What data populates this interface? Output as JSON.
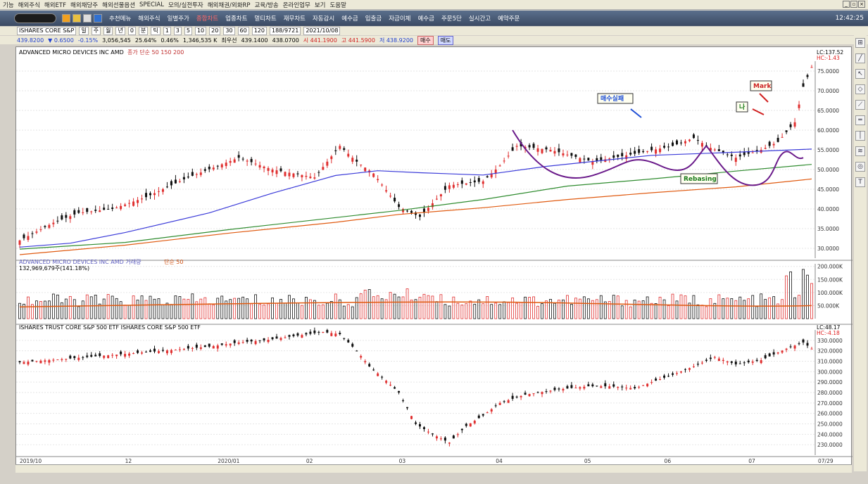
{
  "menu": [
    "기능",
    "해외주식",
    "해외ETF",
    "해외채당주",
    "해외선물옵션",
    "SPECIAL",
    "모의/실전투자",
    "해외채권/외화RP",
    "교육/방송",
    "온라인업무",
    "보기",
    "도움말"
  ],
  "toolbar": {
    "items": [
      "추천메뉴",
      "해외주식",
      "일별주가",
      "종합차트",
      "업종차트",
      "멀티차트",
      "재무차트",
      "자동감시",
      "예수금",
      "입출금",
      "자금이체",
      "예수금",
      "주문5단",
      "실시간고",
      "예약주문"
    ],
    "active_index": 3,
    "clock": "12:42:25"
  },
  "controls": {
    "ticker": "ISHARES CORE S&P",
    "periods": [
      "일",
      "주",
      "월",
      "년",
      "0",
      "분",
      "틱",
      "1",
      "3",
      "5",
      "10",
      "20",
      "30",
      "60",
      "120"
    ],
    "count": "188/9721",
    "date": "2021/10/08"
  },
  "quote": {
    "price": "439.8200",
    "change": "▼ 0.6500",
    "pct": "-0.15%",
    "volume": "3,056,545",
    "v_pct": "25.64%",
    "rate": "0.46%",
    "amount": "1,346,535 K",
    "best_label": "최우선",
    "bid1": "439.1400",
    "bid2": "438.0700",
    "open": "시 441.1900",
    "high": "고 441.5900",
    "low": "저 438.9200",
    "buy": "매수",
    "sell": "매도"
  },
  "chart_data": [
    {
      "type": "candlestick",
      "title": "ADVANCED MICRO DEVICES INC  AMD",
      "indicator_label": "종가 단순 50 150 200",
      "x_ticks": [
        "2019/10",
        "12",
        "2020/01",
        "02",
        "03",
        "04",
        "05",
        "06",
        "07",
        "07/29"
      ],
      "ylim": [
        27.5,
        77.5
      ],
      "y_ticks": [
        "75.0000",
        "70.0000",
        "65.0000",
        "60.0000",
        "55.0000",
        "50.0000",
        "45.0000",
        "40.0000",
        "35.0000",
        "30.0000"
      ],
      "lc_label": "LC:137.52",
      "hc_label": "HC:-1.43",
      "series": [
        {
          "name": "50",
          "color": "#3b3bd9",
          "values": [
            [
              0,
              30.3
            ],
            [
              12,
              31.3
            ],
            [
              25,
              34
            ],
            [
              45,
              39
            ],
            [
              60,
              44
            ],
            [
              75,
              48.5
            ],
            [
              85,
              49.7
            ],
            [
              95,
              49.2
            ],
            [
              110,
              48.6
            ],
            [
              125,
              50.8
            ],
            [
              150,
              53.6
            ],
            [
              170,
              54.4
            ],
            [
              188,
              55.2
            ]
          ]
        },
        {
          "name": "150",
          "color": "#2e8b2e",
          "values": [
            [
              0,
              29.8
            ],
            [
              25,
              31.5
            ],
            [
              50,
              34.8
            ],
            [
              75,
              37.8
            ],
            [
              90,
              39.6
            ],
            [
              110,
              42.4
            ],
            [
              130,
              45.8
            ],
            [
              150,
              47.6
            ],
            [
              170,
              49.6
            ],
            [
              188,
              51.3
            ]
          ]
        },
        {
          "name": "200",
          "color": "#e05a10",
          "values": [
            [
              0,
              28.4
            ],
            [
              25,
              30.8
            ],
            [
              50,
              33.9
            ],
            [
              75,
              36.6
            ],
            [
              90,
              38.6
            ],
            [
              110,
              40.3
            ],
            [
              130,
              42.4
            ],
            [
              150,
              44.1
            ],
            [
              170,
              45.6
            ],
            [
              188,
              47.6
            ]
          ]
        }
      ],
      "ohlc_path": [
        [
          0,
          32
        ],
        [
          8,
          36.5
        ],
        [
          14,
          39
        ],
        [
          22,
          40
        ],
        [
          30,
          43
        ],
        [
          40,
          48
        ],
        [
          52,
          53
        ],
        [
          60,
          50
        ],
        [
          70,
          48
        ],
        [
          76,
          56
        ],
        [
          80,
          52
        ],
        [
          84,
          49
        ],
        [
          90,
          40.5
        ],
        [
          95,
          38
        ],
        [
          102,
          46
        ],
        [
          110,
          47
        ],
        [
          114,
          51
        ],
        [
          118,
          56
        ],
        [
          126,
          55
        ],
        [
          136,
          52
        ],
        [
          146,
          54
        ],
        [
          155,
          56
        ],
        [
          160,
          58
        ],
        [
          164,
          55.5
        ],
        [
          170,
          53
        ],
        [
          176,
          55
        ],
        [
          180,
          57
        ],
        [
          184,
          62
        ],
        [
          186,
          71
        ],
        [
          188,
          76
        ]
      ]
    },
    {
      "type": "bar",
      "title": "ADVANCED MICRO DEVICES INC  AMD 거래량",
      "indicator_label": "단순 50",
      "value_label": "132,969,679주(141.18%)",
      "ylim": [
        0,
        210000
      ],
      "y_ticks": [
        "200.000K",
        "150.000K",
        "100.000K",
        "50.000K"
      ]
    },
    {
      "type": "candlestick",
      "title": "ISHARES TRUST CORE S&P 500 ETF  ISHARES CORE S&P 500 ETF",
      "ylim": [
        220,
        340
      ],
      "y_ticks": [
        "330.0000",
        "320.0000",
        "310.0000",
        "300.0000",
        "290.0000",
        "280.0000",
        "270.0000",
        "260.0000",
        "250.0000",
        "240.0000",
        "230.0000"
      ],
      "lc_label": "LC:48.17",
      "hc_label": "HC:-4.18",
      "path": [
        [
          0,
          309
        ],
        [
          10,
          312
        ],
        [
          22,
          316
        ],
        [
          34,
          320
        ],
        [
          45,
          324
        ],
        [
          52,
          328
        ],
        [
          58,
          330
        ],
        [
          65,
          334
        ],
        [
          72,
          338
        ],
        [
          76,
          336
        ],
        [
          80,
          320
        ],
        [
          83,
          305
        ],
        [
          86,
          295
        ],
        [
          90,
          280
        ],
        [
          94,
          250
        ],
        [
          98,
          240
        ],
        [
          102,
          232
        ],
        [
          106,
          248
        ],
        [
          110,
          258
        ],
        [
          114,
          270
        ],
        [
          120,
          278
        ],
        [
          128,
          283
        ],
        [
          135,
          286
        ],
        [
          140,
          286
        ],
        [
          146,
          284
        ],
        [
          150,
          290
        ],
        [
          155,
          297
        ],
        [
          160,
          305
        ],
        [
          165,
          314
        ],
        [
          170,
          307
        ],
        [
          176,
          311
        ],
        [
          182,
          322
        ],
        [
          186,
          328
        ],
        [
          188,
          322
        ]
      ]
    }
  ],
  "annotations": [
    {
      "text": "매수실패",
      "color": "#1f4fd6"
    },
    {
      "text": "Mark",
      "color": "#cc2222"
    },
    {
      "text": "나",
      "color": "#1a7a1a"
    },
    {
      "text": "Rebasing",
      "color": "#1a7a1a"
    }
  ],
  "colors": {
    "up": "#e03030",
    "down": "#111111",
    "purple": "#6a1a8a",
    "volume_ma": "#e05a10"
  }
}
